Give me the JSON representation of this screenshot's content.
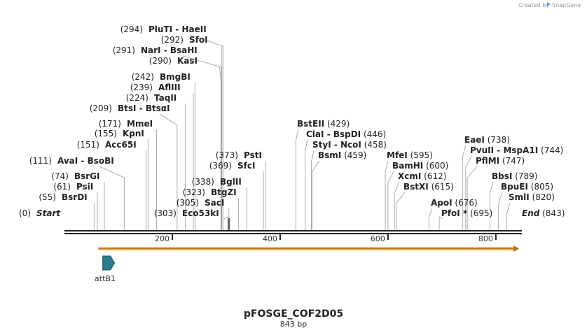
{
  "credit": {
    "text": "Created by",
    "brand": "SnapGene"
  },
  "plasmid": {
    "name": "pFOSGE_COF2D05",
    "length_label": "843 bp",
    "length": 843
  },
  "axis_ticks": [
    {
      "value": 200,
      "label": "200"
    },
    {
      "value": 400,
      "label": "400"
    },
    {
      "value": 600,
      "label": "600"
    },
    {
      "value": 800,
      "label": "800"
    }
  ],
  "features": [
    {
      "name": "attB1",
      "start": 71,
      "end": 93,
      "color": "#2a7c8c"
    }
  ],
  "orf": {
    "start": 63,
    "end": 843,
    "color": "#f2b84b"
  },
  "sites": [
    {
      "id": "start",
      "pos": "(0)",
      "name": "Start",
      "bp": 0
    },
    {
      "id": "bsrdi",
      "pos": "(55)",
      "name": "BsrDI",
      "bp": 55
    },
    {
      "id": "psii",
      "pos": "(61)",
      "name": "PsiI",
      "bp": 61
    },
    {
      "id": "bsrgi",
      "pos": "(74)",
      "name": "BsrGI",
      "bp": 74
    },
    {
      "id": "avai",
      "pos": "(111)",
      "name": "AvaI",
      "name2": "BsoBI",
      "bp": 111
    },
    {
      "id": "acc65i",
      "pos": "(151)",
      "name": "Acc65I",
      "bp": 151
    },
    {
      "id": "kpni",
      "pos": "(155)",
      "name": "KpnI",
      "bp": 155
    },
    {
      "id": "mmei",
      "pos": "(171)",
      "name": "MmeI",
      "bp": 171
    },
    {
      "id": "btsi",
      "pos": "(209)",
      "name": "BtsI",
      "name2": "BtsαI",
      "bp": 209
    },
    {
      "id": "taqii",
      "pos": "(224)",
      "name": "TaqII",
      "bp": 224
    },
    {
      "id": "afliii",
      "pos": "(239)",
      "name": "AflIII",
      "bp": 239
    },
    {
      "id": "bmgbi",
      "pos": "(242)",
      "name": "BmgBI",
      "bp": 242
    },
    {
      "id": "kasi",
      "pos": "(290)",
      "name": "KasI",
      "bp": 290
    },
    {
      "id": "nari",
      "pos": "(291)",
      "name": "NarI",
      "name2": "BsaHI",
      "bp": 291
    },
    {
      "id": "sfoi",
      "pos": "(292)",
      "name": "SfoI",
      "bp": 292
    },
    {
      "id": "pluti",
      "pos": "(294)",
      "name": "PluTI",
      "name2": "HaeII",
      "bp": 294
    },
    {
      "id": "eco53ki",
      "pos": "(303)",
      "name": "Eco53kI",
      "bp": 303
    },
    {
      "id": "saci",
      "pos": "(305)",
      "name": "SacI",
      "bp": 305
    },
    {
      "id": "btgzi",
      "pos": "(323)",
      "name": "BtgZI",
      "bp": 323
    },
    {
      "id": "bglii",
      "pos": "(338)",
      "name": "BglII",
      "bp": 338
    },
    {
      "id": "sfci",
      "pos": "(369)",
      "name": "SfcI",
      "bp": 369
    },
    {
      "id": "psti",
      "pos": "(373)",
      "name": "PstI",
      "bp": 373
    },
    {
      "id": "bsteii",
      "pos": "(429)",
      "name": "BstEII",
      "bp": 429
    },
    {
      "id": "clai",
      "pos": "(446)",
      "name": "ClaI",
      "name2": "BspDI",
      "bp": 446
    },
    {
      "id": "styi",
      "pos": "(458)",
      "name": "StyI",
      "name2": "NcoI",
      "bp": 458
    },
    {
      "id": "bsmi",
      "pos": "(459)",
      "name": "BsmI",
      "bp": 459
    },
    {
      "id": "mfei",
      "pos": "(595)",
      "name": "MfeI",
      "bp": 595
    },
    {
      "id": "bamhi",
      "pos": "(600)",
      "name": "BamHI",
      "bp": 600
    },
    {
      "id": "xcmi",
      "pos": "(612)",
      "name": "XcmI",
      "bp": 612
    },
    {
      "id": "bstxi",
      "pos": "(615)",
      "name": "BstXI",
      "bp": 615
    },
    {
      "id": "apoi",
      "pos": "(676)",
      "name": "ApoI",
      "bp": 676
    },
    {
      "id": "pfoi",
      "pos": "(695)",
      "name": "PfoI *",
      "bp": 695
    },
    {
      "id": "eaei",
      "pos": "(738)",
      "name": "EaeI",
      "bp": 738
    },
    {
      "id": "pvuii",
      "pos": "(744)",
      "name": "PvuII",
      "name2": "MspA1I",
      "bp": 744
    },
    {
      "id": "pflmi",
      "pos": "(747)",
      "name": "PflMI",
      "bp": 747
    },
    {
      "id": "bbsi",
      "pos": "(789)",
      "name": "BbsI",
      "bp": 789
    },
    {
      "id": "bpuei",
      "pos": "(805)",
      "name": "BpuEI",
      "bp": 805
    },
    {
      "id": "smli",
      "pos": "(820)",
      "name": "SmlI",
      "bp": 820
    },
    {
      "id": "end",
      "pos": "(843)",
      "name": "End",
      "bp": 843
    }
  ]
}
